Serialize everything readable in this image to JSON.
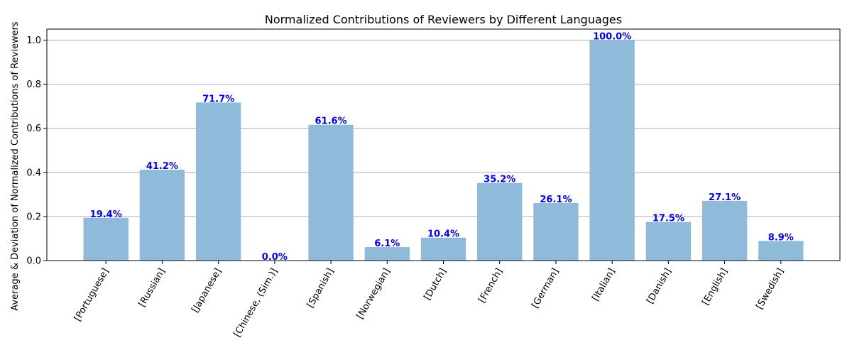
{
  "chart_data": {
    "type": "bar",
    "title": "Normalized Contributions of Reviewers by Different Languages",
    "xlabel": "",
    "ylabel": "Average & Deviation of Normalized Contributions of Reviewers",
    "categories": [
      "[Portuguese]",
      "[Russian]",
      "[Japanese]",
      "[Chinese, (Sim.)]",
      "[Spanish]",
      "[Norwegian]",
      "[Dutch]",
      "[French]",
      "[German]",
      "[Italian]",
      "[Danish]",
      "[English]",
      "[Swedish]"
    ],
    "values": [
      0.194,
      0.412,
      0.717,
      0.0,
      0.616,
      0.061,
      0.104,
      0.352,
      0.261,
      1.0,
      0.175,
      0.271,
      0.089
    ],
    "data_labels": [
      "19.4%",
      "41.2%",
      "71.7%",
      "0.0%",
      "61.6%",
      "6.1%",
      "10.4%",
      "35.2%",
      "26.1%",
      "100.0%",
      "17.5%",
      "27.1%",
      "8.9%"
    ],
    "ylim": [
      0,
      1.05
    ],
    "yticks": [
      0.0,
      0.2,
      0.4,
      0.6,
      0.8,
      1.0
    ],
    "ytick_labels": [
      "0.0",
      "0.2",
      "0.4",
      "0.6",
      "0.8",
      "1.0"
    ],
    "grid": "y-major",
    "bar_color": "#8fbad9",
    "label_color": "#0000ff"
  }
}
